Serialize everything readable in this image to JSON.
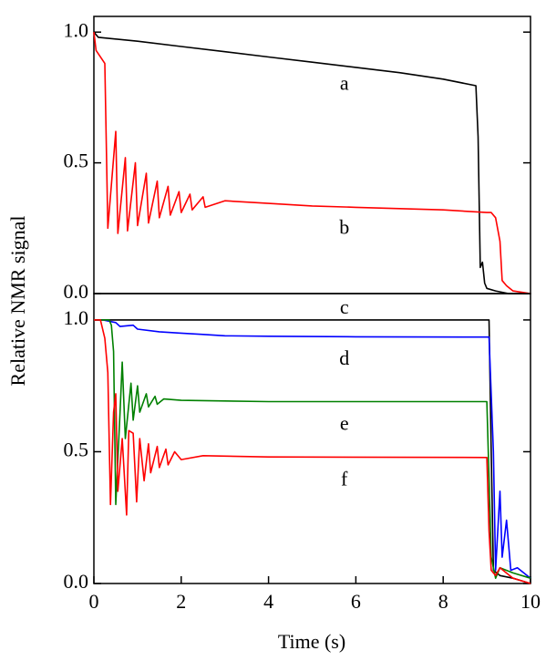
{
  "chart_data": [
    {
      "type": "line",
      "ylabel": "Relative NMR signal",
      "xlim": [
        0,
        10
      ],
      "ylim": [
        0,
        1.06
      ],
      "yticks": [
        {
          "value": 0,
          "label": "0.0"
        },
        {
          "value": 0.5,
          "label": "0.5"
        },
        {
          "value": 1,
          "label": "1.0"
        }
      ],
      "series": [
        {
          "name": "a",
          "color": "#000000",
          "x": [
            0,
            0.1,
            1,
            2,
            3,
            4,
            5,
            6,
            7,
            8,
            8.75,
            8.8,
            8.85,
            8.9,
            8.95,
            9.0,
            9.2,
            9.5,
            10
          ],
          "values": [
            1.0,
            0.98,
            0.965,
            0.945,
            0.925,
            0.905,
            0.885,
            0.865,
            0.845,
            0.82,
            0.795,
            0.6,
            0.1,
            0.12,
            0.04,
            0.02,
            0.01,
            0.0,
            0.0
          ]
        },
        {
          "name": "b",
          "color": "#ff0000",
          "x": [
            0,
            0.05,
            0.25,
            0.32,
            0.5,
            0.55,
            0.72,
            0.77,
            0.95,
            1.0,
            1.2,
            1.25,
            1.45,
            1.5,
            1.7,
            1.75,
            1.95,
            2.0,
            2.2,
            2.25,
            2.5,
            2.55,
            3,
            4,
            5,
            6,
            7,
            8,
            9,
            9.1,
            9.2,
            9.3,
            9.35,
            9.45,
            9.6,
            10
          ],
          "values": [
            1.0,
            0.93,
            0.88,
            0.25,
            0.62,
            0.23,
            0.52,
            0.24,
            0.5,
            0.26,
            0.46,
            0.27,
            0.43,
            0.29,
            0.41,
            0.3,
            0.39,
            0.31,
            0.38,
            0.32,
            0.37,
            0.33,
            0.355,
            0.345,
            0.335,
            0.33,
            0.325,
            0.32,
            0.31,
            0.31,
            0.29,
            0.2,
            0.05,
            0.03,
            0.01,
            0.0
          ]
        }
      ]
    },
    {
      "type": "line",
      "xlabel": "Time (s)",
      "xlim": [
        0,
        10
      ],
      "ylim": [
        0,
        1.1
      ],
      "xticks": [
        0,
        2,
        4,
        6,
        8,
        10
      ],
      "yticks": [
        {
          "value": 0,
          "label": "0.0"
        },
        {
          "value": 0.5,
          "label": "0.5"
        },
        {
          "value": 1,
          "label": "1.0"
        }
      ],
      "series": [
        {
          "name": "c",
          "color": "#000000",
          "x": [
            0,
            9.05,
            9.1,
            9.15,
            9.3,
            9.6,
            10
          ],
          "values": [
            1.0,
            1.0,
            0.5,
            0.05,
            0.03,
            0.02,
            0.0
          ]
        },
        {
          "name": "d",
          "color": "#0000ff",
          "x": [
            0,
            0.2,
            0.5,
            0.6,
            0.9,
            1.0,
            1.5,
            2,
            2.5,
            3,
            4,
            6,
            9.05,
            9.15,
            9.2,
            9.25,
            9.3,
            9.35,
            9.45,
            9.55,
            9.7,
            10
          ],
          "values": [
            1.0,
            1.0,
            0.99,
            0.975,
            0.98,
            0.965,
            0.955,
            0.95,
            0.945,
            0.94,
            0.938,
            0.936,
            0.935,
            0.5,
            0.05,
            0.2,
            0.35,
            0.1,
            0.24,
            0.05,
            0.06,
            0.02
          ]
        },
        {
          "name": "e",
          "color": "#008000",
          "x": [
            0,
            0.35,
            0.4,
            0.45,
            0.5,
            0.6,
            0.65,
            0.72,
            0.85,
            0.9,
            1.0,
            1.05,
            1.2,
            1.25,
            1.4,
            1.45,
            1.6,
            2,
            4,
            9.0,
            9.05,
            9.1,
            9.2,
            9.3,
            9.6,
            10
          ],
          "values": [
            1.0,
            1.0,
            0.98,
            0.88,
            0.3,
            0.65,
            0.84,
            0.55,
            0.76,
            0.62,
            0.75,
            0.65,
            0.72,
            0.67,
            0.71,
            0.68,
            0.7,
            0.695,
            0.69,
            0.69,
            0.4,
            0.1,
            0.02,
            0.06,
            0.04,
            0.02
          ]
        },
        {
          "name": "f",
          "color": "#ff0000",
          "x": [
            0,
            0.15,
            0.25,
            0.32,
            0.38,
            0.45,
            0.5,
            0.55,
            0.65,
            0.75,
            0.8,
            0.9,
            0.98,
            1.05,
            1.15,
            1.25,
            1.3,
            1.45,
            1.5,
            1.65,
            1.7,
            1.85,
            2.0,
            2.5,
            4,
            9.0,
            9.05,
            9.1,
            9.2,
            9.3,
            9.6,
            10
          ],
          "values": [
            1.0,
            1.0,
            0.93,
            0.8,
            0.3,
            0.65,
            0.72,
            0.35,
            0.55,
            0.26,
            0.58,
            0.57,
            0.31,
            0.55,
            0.39,
            0.53,
            0.42,
            0.52,
            0.44,
            0.51,
            0.45,
            0.5,
            0.47,
            0.485,
            0.48,
            0.478,
            0.2,
            0.05,
            0.03,
            0.06,
            0.02,
            0.0
          ]
        }
      ]
    }
  ]
}
